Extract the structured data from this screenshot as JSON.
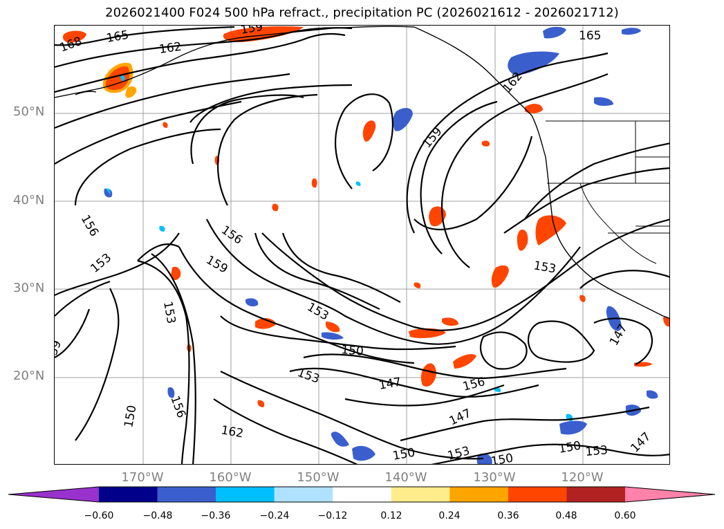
{
  "title": "2026021400 F024 500 hPa refract., precipitation PC (2026021612 - 2026021712)",
  "lat_labels": [
    "50°N",
    "40°N",
    "30°N",
    "20°N"
  ],
  "lon_labels": [
    "170°W",
    "160°W",
    "150°W",
    "140°W",
    "130°W",
    "120°W"
  ],
  "colorbar": {
    "ticks": [
      "−0.60",
      "−0.48",
      "−0.36",
      "−0.24",
      "−0.12",
      "0.12",
      "0.24",
      "0.36",
      "0.48",
      "0.60"
    ],
    "colors": [
      "#9932cc",
      "#00008b",
      "#3a5fcd",
      "#00bfff",
      "#b0e2ff",
      "#ffffff",
      "#ffec8b",
      "#ffa500",
      "#ff4500",
      "#b22222",
      "#ff82ab"
    ]
  },
  "contour_labels": [
    "168",
    "165",
    "162",
    "159",
    "165",
    "162",
    "159",
    "156",
    "156",
    "153",
    "159",
    "153",
    "153",
    "150",
    "153",
    "147",
    "156",
    "147",
    "150",
    "153",
    "150",
    "153",
    "147",
    "153",
    "150",
    "156",
    "150",
    "162",
    "147",
    "59"
  ],
  "icons": [
    "coastline",
    "state-borders"
  ]
}
